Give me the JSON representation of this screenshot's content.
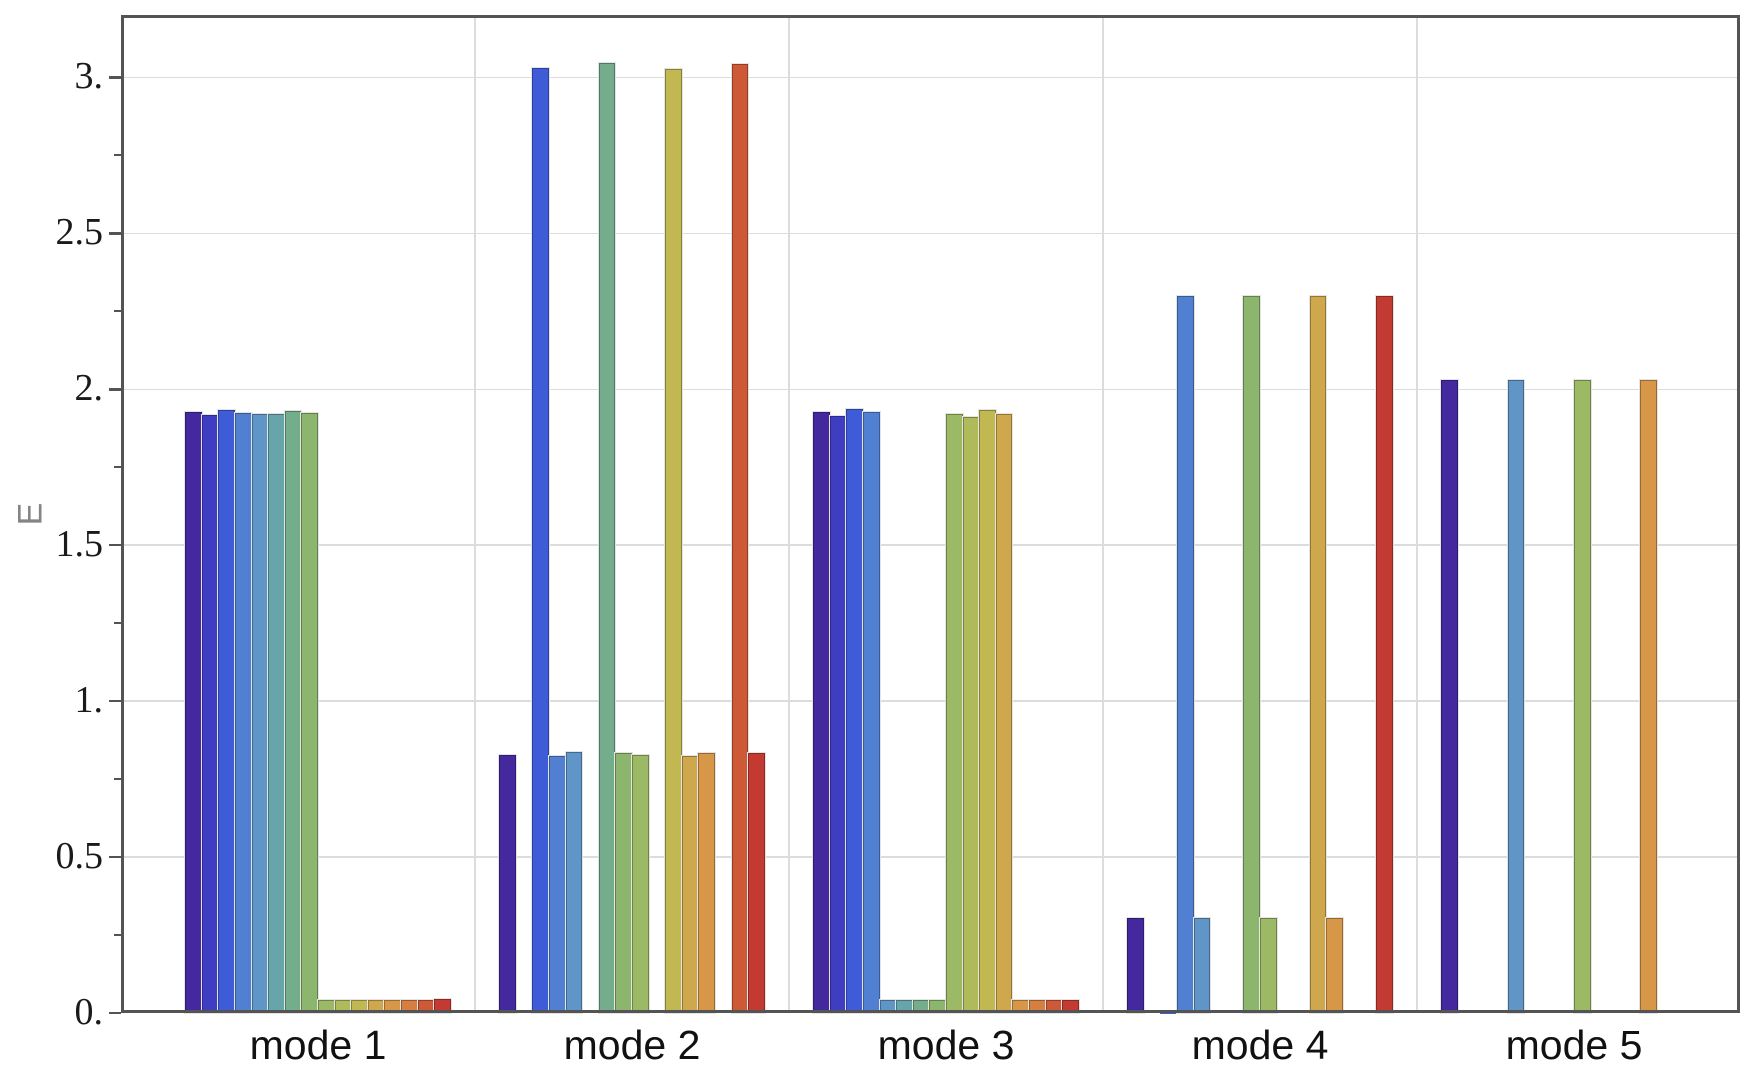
{
  "chart_data": {
    "type": "bar",
    "title": "",
    "xlabel": "",
    "ylabel": "E",
    "ylim": [
      0,
      3.2
    ],
    "grid": true,
    "legend": false,
    "ytick_values": [
      0,
      0.5,
      1,
      1.5,
      2,
      2.5,
      3
    ],
    "ytick_labels": [
      "0.",
      "0.5",
      "1.",
      "1.5",
      "2.",
      "2.5",
      "3."
    ],
    "yminor_tick_values": [
      0.25,
      0.75,
      1.25,
      1.75,
      2.25,
      2.75
    ],
    "categories": [
      "mode 1",
      "mode 2",
      "mode 3",
      "mode 4",
      "mode 5"
    ],
    "bars_per_group": 16,
    "bar_colors": [
      "#44289E",
      "#3F3DC2",
      "#3F5CD8",
      "#517FD2",
      "#5F95C7",
      "#67A5AB",
      "#74AD8B",
      "#8CB56D",
      "#9CBA66",
      "#AFBA5B",
      "#C2B852",
      "#CFA84E",
      "#D79748",
      "#D67F40",
      "#CD5936",
      "#C23A31"
    ],
    "groups": [
      {
        "category": "mode 1",
        "values": [
          1.928,
          1.919,
          1.933,
          1.925,
          1.922,
          1.92,
          1.931,
          1.923,
          0.042,
          0.042,
          0.042,
          0.042,
          0.042,
          0.042,
          0.042,
          0.044
        ]
      },
      {
        "category": "mode 2",
        "values": [
          0.828,
          0.002,
          3.03,
          0.825,
          0.836,
          0.002,
          3.047,
          0.834,
          0.827,
          0.002,
          3.028,
          0.824,
          0.835,
          0.002,
          3.043,
          0.833
        ]
      },
      {
        "category": "mode 3",
        "values": [
          1.928,
          1.915,
          1.937,
          1.927,
          0.042,
          0.042,
          0.042,
          0.042,
          1.921,
          1.911,
          1.932,
          1.921,
          0.042,
          0.042,
          0.042,
          0.042
        ]
      },
      {
        "category": "mode 4",
        "values": [
          0.305,
          0.007,
          0.001,
          2.3,
          0.305,
          0.006,
          0.006,
          2.3,
          0.305,
          0.005,
          0.005,
          2.3,
          0.305,
          0.004,
          0.004,
          2.3
        ]
      },
      {
        "category": "mode 5",
        "values": [
          2.031,
          0.002,
          0.002,
          0.002,
          2.031,
          0.003,
          0.003,
          0.003,
          2.031,
          0.003,
          0.003,
          0.003,
          2.031,
          0.004,
          0.004,
          0.007
        ]
      }
    ]
  },
  "style": {
    "frame_color": "#545454",
    "grid_color": "#dcdcdc",
    "tick_color": "#545454",
    "bar_outer_stroke": "#e4e4e4",
    "ytick_label_color": "#1a1a1a",
    "xcat_label_color": "#111111",
    "ylabel_color": "#848484",
    "background": "#ffffff"
  }
}
